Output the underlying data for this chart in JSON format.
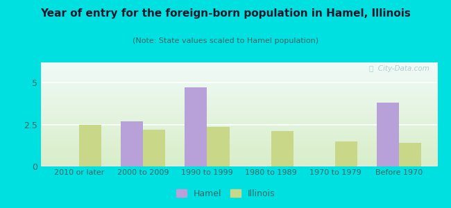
{
  "title": "Year of entry for the foreign-born population in Hamel, Illinois",
  "subtitle": "(Note: State values scaled to Hamel population)",
  "categories": [
    "2010 or later",
    "2000 to 2009",
    "1990 to 1999",
    "1980 to 1989",
    "1970 to 1979",
    "Before 1970"
  ],
  "hamel_values": [
    0,
    2.7,
    4.7,
    0,
    0,
    3.8
  ],
  "illinois_values": [
    2.5,
    2.2,
    2.35,
    2.1,
    1.5,
    1.4
  ],
  "hamel_color": "#b8a0d8",
  "illinois_color": "#c8d888",
  "background_outer": "#00e0e0",
  "background_plot_top": "#f0faf8",
  "background_plot_bottom": "#d8eec8",
  "ylim": [
    0,
    6.2
  ],
  "yticks": [
    0,
    2.5,
    5
  ],
  "bar_width": 0.35,
  "legend_hamel": "Hamel",
  "legend_illinois": "Illinois",
  "title_color": "#1a1a2e",
  "subtitle_color": "#336666",
  "tick_color": "#336666",
  "grid_color": "#ffffff",
  "watermark_color": "#a0c8c8"
}
